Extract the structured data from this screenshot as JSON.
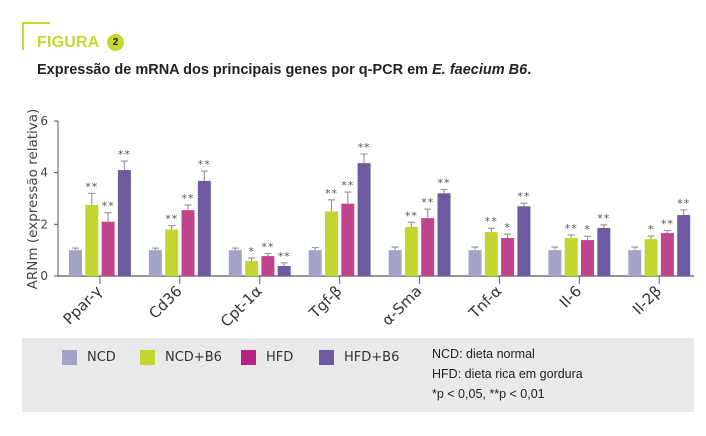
{
  "figure": {
    "label": "FIGURA",
    "number": "2",
    "title_main": "Expressão de mRNA dos principais genes por q-PCR em ",
    "title_italic": "E. faecium B6",
    "title_end": "."
  },
  "colors": {
    "accent": "#c5d631",
    "NCD": "#a3a3c5",
    "NCD+B6": "#c3d62f",
    "HFD": "#c2448f",
    "HFD+B6": "#6e5a9e"
  },
  "chart_data": {
    "type": "bar",
    "title": "Expressão de mRNA dos principais genes por q-PCR em E. faecium B6.",
    "xlabel": "",
    "ylabel": "ARNm (expressão relativa)",
    "ylim": [
      0,
      6
    ],
    "yticks": [
      0,
      2,
      4,
      6
    ],
    "grid": false,
    "legend_position": "bottom",
    "categories": [
      "Ppar-γ",
      "Cd36",
      "Cpt-1α",
      "Tgf-β",
      "α-Sma",
      "Tnf-α",
      "Il-6",
      "Il-2β"
    ],
    "series": [
      {
        "name": "NCD",
        "values": [
          1.0,
          1.0,
          1.0,
          1.0,
          1.0,
          1.0,
          1.0,
          1.0
        ],
        "errors": [
          0.08,
          0.08,
          0.08,
          0.1,
          0.12,
          0.12,
          0.12,
          0.12
        ],
        "sig": [
          "",
          "",
          "",
          "",
          "",
          "",
          "",
          ""
        ]
      },
      {
        "name": "NCD+B6",
        "values": [
          2.75,
          1.8,
          0.58,
          2.5,
          1.9,
          1.7,
          1.47,
          1.43
        ],
        "errors": [
          0.45,
          0.15,
          0.12,
          0.45,
          0.18,
          0.15,
          0.12,
          0.12
        ],
        "sig": [
          "**",
          "**",
          "*",
          "**",
          "**",
          "**",
          "**",
          "*"
        ]
      },
      {
        "name": "HFD",
        "values": [
          2.1,
          2.55,
          0.77,
          2.8,
          2.24,
          1.47,
          1.39,
          1.66
        ],
        "errors": [
          0.35,
          0.2,
          0.1,
          0.45,
          0.35,
          0.15,
          0.15,
          0.1
        ],
        "sig": [
          "**",
          "**",
          "**",
          "**",
          "**",
          "*",
          "*",
          "**"
        ]
      },
      {
        "name": "HFD+B6",
        "values": [
          4.1,
          3.68,
          0.39,
          4.37,
          3.2,
          2.7,
          1.86,
          2.36
        ],
        "errors": [
          0.35,
          0.38,
          0.12,
          0.35,
          0.15,
          0.12,
          0.12,
          0.2
        ],
        "sig": [
          "**",
          "**",
          "**",
          "**",
          "**",
          "**",
          "**",
          "**"
        ]
      }
    ]
  },
  "legend": {
    "items": [
      {
        "label": "NCD",
        "key": "NCD"
      },
      {
        "label": "NCD+B6",
        "key": "NCD+B6"
      },
      {
        "label": "HFD",
        "key": "HFD"
      },
      {
        "label": "HFD+B6",
        "key": "HFD+B6"
      }
    ],
    "notes": [
      "NCD: dieta normal",
      "HFD: dieta rica em gordura",
      "*p < 0,05, **p < 0,01"
    ]
  }
}
